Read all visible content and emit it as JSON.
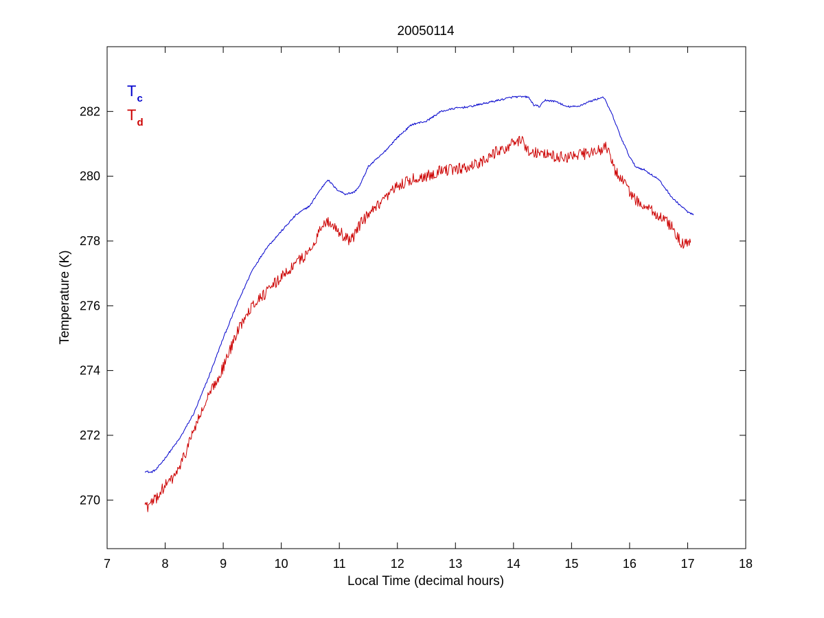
{
  "chart_data": {
    "type": "line",
    "title": "20050114",
    "xlabel": "Local Time (decimal hours)",
    "ylabel": "Temperature (K)",
    "xlim": [
      7,
      18
    ],
    "ylim": [
      268.5,
      284
    ],
    "xticks": [
      7,
      8,
      9,
      10,
      11,
      12,
      13,
      14,
      15,
      16,
      17,
      18
    ],
    "yticks": [
      270,
      272,
      274,
      276,
      278,
      280,
      282
    ],
    "grid": false,
    "legend_position": "top-left",
    "series": [
      {
        "name": "Tc",
        "legend_main": "T",
        "legend_sub": "c",
        "color": "#0000cc",
        "noise": 0.03,
        "points": [
          [
            7.65,
            270.9
          ],
          [
            7.75,
            270.85
          ],
          [
            7.85,
            270.95
          ],
          [
            8.0,
            271.3
          ],
          [
            8.25,
            271.9
          ],
          [
            8.5,
            272.7
          ],
          [
            8.75,
            273.8
          ],
          [
            9.0,
            275.0
          ],
          [
            9.25,
            276.1
          ],
          [
            9.5,
            277.1
          ],
          [
            9.75,
            277.8
          ],
          [
            10.0,
            278.3
          ],
          [
            10.25,
            278.8
          ],
          [
            10.5,
            279.1
          ],
          [
            10.6,
            279.4
          ],
          [
            10.8,
            279.9
          ],
          [
            10.95,
            279.6
          ],
          [
            11.1,
            279.45
          ],
          [
            11.25,
            279.5
          ],
          [
            11.35,
            279.7
          ],
          [
            11.5,
            280.3
          ],
          [
            11.75,
            280.7
          ],
          [
            12.0,
            281.2
          ],
          [
            12.25,
            281.6
          ],
          [
            12.5,
            281.7
          ],
          [
            12.75,
            282.0
          ],
          [
            13.0,
            282.1
          ],
          [
            13.25,
            282.15
          ],
          [
            13.5,
            282.25
          ],
          [
            13.75,
            282.35
          ],
          [
            14.0,
            282.45
          ],
          [
            14.25,
            282.45
          ],
          [
            14.35,
            282.2
          ],
          [
            14.45,
            282.15
          ],
          [
            14.55,
            282.35
          ],
          [
            14.75,
            282.3
          ],
          [
            14.9,
            282.15
          ],
          [
            15.1,
            282.15
          ],
          [
            15.3,
            282.3
          ],
          [
            15.55,
            282.45
          ],
          [
            15.7,
            281.9
          ],
          [
            15.85,
            281.2
          ],
          [
            16.0,
            280.6
          ],
          [
            16.1,
            280.3
          ],
          [
            16.25,
            280.2
          ],
          [
            16.5,
            279.9
          ],
          [
            16.75,
            279.3
          ],
          [
            17.0,
            278.9
          ],
          [
            17.1,
            278.8
          ]
        ]
      },
      {
        "name": "Td",
        "legend_main": "T",
        "legend_sub": "d",
        "color": "#cc0000",
        "noise": 0.18,
        "points": [
          [
            7.65,
            269.9
          ],
          [
            7.7,
            269.8
          ],
          [
            7.8,
            269.95
          ],
          [
            7.9,
            270.2
          ],
          [
            8.0,
            270.45
          ],
          [
            8.1,
            270.6
          ],
          [
            8.25,
            271.0
          ],
          [
            8.4,
            271.7
          ],
          [
            8.5,
            272.2
          ],
          [
            8.75,
            273.2
          ],
          [
            9.0,
            274.1
          ],
          [
            9.2,
            275.0
          ],
          [
            9.4,
            275.8
          ],
          [
            9.6,
            276.2
          ],
          [
            9.8,
            276.5
          ],
          [
            10.0,
            276.9
          ],
          [
            10.25,
            277.3
          ],
          [
            10.5,
            277.7
          ],
          [
            10.65,
            278.3
          ],
          [
            10.75,
            278.6
          ],
          [
            10.9,
            278.5
          ],
          [
            11.05,
            278.2
          ],
          [
            11.2,
            278.0
          ],
          [
            11.35,
            278.5
          ],
          [
            11.5,
            278.8
          ],
          [
            11.75,
            279.2
          ],
          [
            12.0,
            279.7
          ],
          [
            12.25,
            279.9
          ],
          [
            12.5,
            280.0
          ],
          [
            12.75,
            280.2
          ],
          [
            13.0,
            280.2
          ],
          [
            13.25,
            280.3
          ],
          [
            13.5,
            280.5
          ],
          [
            13.75,
            280.8
          ],
          [
            14.0,
            281.0
          ],
          [
            14.15,
            281.1
          ],
          [
            14.25,
            280.8
          ],
          [
            14.5,
            280.7
          ],
          [
            14.75,
            280.6
          ],
          [
            15.0,
            280.6
          ],
          [
            15.25,
            280.7
          ],
          [
            15.5,
            280.8
          ],
          [
            15.6,
            280.9
          ],
          [
            15.75,
            280.2
          ],
          [
            15.9,
            279.8
          ],
          [
            16.0,
            279.5
          ],
          [
            16.2,
            279.1
          ],
          [
            16.5,
            278.8
          ],
          [
            16.75,
            278.4
          ],
          [
            16.9,
            277.9
          ],
          [
            17.05,
            277.95
          ]
        ]
      }
    ]
  }
}
